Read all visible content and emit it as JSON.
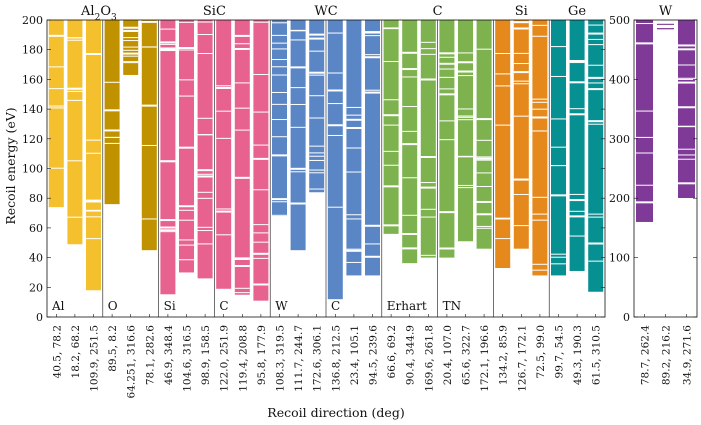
{
  "chart_data": {
    "type": "bar",
    "xlabel": "Recoil direction (deg)",
    "ylabel": "Recoil energy (eV)",
    "panels": [
      {
        "ylim": [
          0,
          200
        ],
        "yticks": [
          0,
          20,
          40,
          60,
          80,
          100,
          120,
          140,
          160,
          180,
          200
        ],
        "groups": [
          {
            "title": "Al₂O₃",
            "title_base": "Al",
            "title_sub1": "2",
            "title_mid": "O",
            "title_sub2": "3",
            "color": "#f5c02e",
            "subgroups": [
              {
                "label": "Al",
                "directions": [
                  {
                    "label": "40.5, 78.2",
                    "threshold": 74
                  },
                  {
                    "label": "18.2, 68.2",
                    "threshold": 49
                  },
                  {
                    "label": "109.9, 251.5",
                    "threshold": 18
                  }
                ]
              }
            ]
          },
          {
            "title": "",
            "color": "#c09200",
            "subgroups": [
              {
                "label": "O",
                "directions": [
                  {
                    "label": "89.5, 8.2",
                    "threshold": 76
                  },
                  {
                    "label": "64.251, 316.6",
                    "threshold": 163
                  },
                  {
                    "label": "78.1, 282.6",
                    "threshold": 45
                  }
                ]
              }
            ]
          },
          {
            "title": "SiC",
            "color": "#e8628f",
            "subgroups": [
              {
                "label": "Si",
                "directions": [
                  {
                    "label": "46.9, 348.4",
                    "threshold": 15
                  },
                  {
                    "label": "104.6, 316.5",
                    "threshold": 30
                  },
                  {
                    "label": "98.9, 158.5",
                    "threshold": 26
                  }
                ]
              },
              {
                "label": "C",
                "directions": [
                  {
                    "label": "122.0, 251.9",
                    "threshold": 19
                  },
                  {
                    "label": "119.4, 208.8",
                    "threshold": 15
                  },
                  {
                    "label": "95.8, 177.9",
                    "threshold": 11
                  }
                ]
              }
            ]
          },
          {
            "title": "WC",
            "color": "#5b86c5",
            "subgroups": [
              {
                "label": "W",
                "directions": [
                  {
                    "label": "108.3, 319.5",
                    "threshold": 68
                  },
                  {
                    "label": "111.7, 244.7",
                    "threshold": 45
                  },
                  {
                    "label": "172.6, 306.1",
                    "threshold": 84
                  }
                ]
              },
              {
                "label": "C",
                "directions": [
                  {
                    "label": "136.8, 212.5",
                    "threshold": 12
                  },
                  {
                    "label": "23.4, 105.1",
                    "threshold": 28
                  },
                  {
                    "label": "94.5, 239.6",
                    "threshold": 28
                  }
                ]
              }
            ]
          },
          {
            "title": "C",
            "color": "#7db24e",
            "subgroups": [
              {
                "label": "Erhart",
                "directions": [
                  {
                    "label": "66.6, 69.2",
                    "threshold": 56
                  },
                  {
                    "label": "90.4, 344.9",
                    "threshold": 36
                  },
                  {
                    "label": "169.6, 261.8",
                    "threshold": 40
                  }
                ]
              },
              {
                "label": "TN",
                "directions": [
                  {
                    "label": "20.4, 107.0",
                    "threshold": 40
                  },
                  {
                    "label": "65.6, 322.7",
                    "threshold": 51
                  },
                  {
                    "label": "172.1, 196.6",
                    "threshold": 46
                  }
                ]
              }
            ]
          },
          {
            "title": "Si",
            "color": "#e6891c",
            "subgroups": [
              {
                "label": "",
                "directions": [
                  {
                    "label": "134.2, 85.9",
                    "threshold": 33
                  },
                  {
                    "label": "126.7, 172.1",
                    "threshold": 46
                  },
                  {
                    "label": "72.5, 99.0",
                    "threshold": 28
                  }
                ]
              }
            ]
          },
          {
            "title": "Ge",
            "color": "#079092",
            "subgroups": [
              {
                "label": "",
                "directions": [
                  {
                    "label": "99.7, 54.5",
                    "threshold": 28
                  },
                  {
                    "label": "49.3, 190.3",
                    "threshold": 31
                  },
                  {
                    "label": "61.5, 310.5",
                    "threshold": 17
                  }
                ]
              }
            ]
          }
        ]
      },
      {
        "ylim": [
          0,
          500
        ],
        "yticks": [
          0,
          100,
          200,
          300,
          400,
          500
        ],
        "groups": [
          {
            "title": "W",
            "color": "#7e3a96",
            "subgroups": [
              {
                "label": "",
                "directions": [
                  {
                    "label": "78.7, 262.4",
                    "threshold": 160
                  },
                  {
                    "label": "89.2, 216.2",
                    "threshold": 482
                  },
                  {
                    "label": "34.9, 271.6",
                    "threshold": 200
                  }
                ]
              }
            ]
          }
        ]
      }
    ]
  }
}
